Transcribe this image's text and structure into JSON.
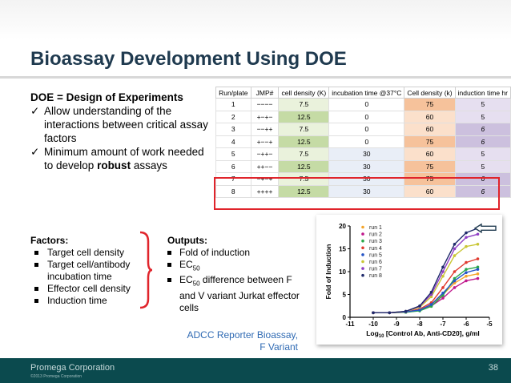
{
  "slide": {
    "title": "Bioassay Development Using DOE",
    "doe_definition": "DOE = Design of Experiments",
    "doe_bullets": {
      "b1": "Allow understanding of the interactions between critical assay factors",
      "b2_pre": "Minimum amount of work needed to develop ",
      "b2_bold": "robust",
      "b2_post": " assays"
    },
    "factors_heading": "Factors:",
    "factors": [
      "Target cell density",
      "Target cell/antibody incubation time",
      "Effector cell density",
      "Induction time"
    ],
    "outputs_heading": "Outputs:",
    "outputs": {
      "o1": "Fold of induction",
      "o2_pre": "EC",
      "o2_sub": "50",
      "o3_pre": "EC",
      "o3_sub": "50",
      "o3_post": " difference between F and V variant Jurkat effector cells"
    },
    "caption": [
      "ADCC Reporter Bioassay,",
      "F Variant"
    ],
    "footer": {
      "company": "Promega Corporation",
      "copyright": "©2013 Promega Corporation",
      "page_number": "38"
    }
  },
  "design_table": {
    "headers": [
      "Run/plate",
      "JMP#",
      "cell density (K)",
      "incubation time @37°C",
      "Cell density (k)",
      "induction time hr"
    ],
    "rows": [
      [
        "1",
        "−−−−",
        "7.5",
        "0",
        "75",
        "5"
      ],
      [
        "2",
        "+−+−",
        "12.5",
        "0",
        "60",
        "5"
      ],
      [
        "3",
        "−−++",
        "7.5",
        "0",
        "60",
        "6"
      ],
      [
        "4",
        "+−−+",
        "12.5",
        "0",
        "75",
        "6"
      ],
      [
        "5",
        "−++−",
        "7.5",
        "30",
        "60",
        "5"
      ],
      [
        "6",
        "++−−",
        "12.5",
        "30",
        "75",
        "5"
      ],
      [
        "7",
        "−+−+",
        "7.5",
        "30",
        "75",
        "6"
      ],
      [
        "8",
        "++++",
        "12.5",
        "30",
        "60",
        "6"
      ]
    ],
    "highlighted_runs": [
      "7",
      "8"
    ]
  },
  "chart_data": {
    "type": "scatter",
    "xlabel_prefix": "Log",
    "xlabel_sub": "10",
    "xlabel_suffix": " [Control Ab, Anti-CD20], g/ml",
    "ylabel": "Fold of Induction",
    "xlim": [
      -11,
      -5
    ],
    "ylim": [
      0,
      20
    ],
    "xticks": [
      "-11",
      "-10",
      "-9",
      "-8",
      "-7",
      "-6",
      "-5"
    ],
    "yticks": [
      "0",
      "5",
      "10",
      "15",
      "20"
    ],
    "x": [
      -10.0,
      -9.3,
      -8.6,
      -8.0,
      -7.5,
      -7.0,
      -6.5,
      -6.0,
      -5.5
    ],
    "series": [
      {
        "name": "run 1",
        "color": "#f4a52b",
        "values": [
          1.0,
          1.0,
          1.1,
          1.5,
          2.8,
          5.0,
          7.5,
          9.0,
          9.5
        ]
      },
      {
        "name": "run 2",
        "color": "#c0188c",
        "values": [
          1.0,
          1.0,
          1.2,
          1.6,
          2.5,
          4.2,
          6.5,
          8.0,
          8.5
        ]
      },
      {
        "name": "run 3",
        "color": "#2aa84a",
        "values": [
          1.0,
          1.0,
          1.1,
          1.4,
          2.4,
          4.8,
          8.5,
          10.5,
          11.0
        ]
      },
      {
        "name": "run 4",
        "color": "#e03a2f",
        "values": [
          1.0,
          1.0,
          1.2,
          1.8,
          3.2,
          6.5,
          10.0,
          12.0,
          12.8
        ]
      },
      {
        "name": "run 5",
        "color": "#2454c6",
        "values": [
          1.0,
          1.0,
          1.2,
          1.6,
          2.8,
          5.3,
          8.0,
          9.8,
          10.5
        ]
      },
      {
        "name": "run 6",
        "color": "#c9c634",
        "values": [
          1.0,
          1.0,
          1.3,
          2.2,
          4.5,
          9.0,
          13.5,
          15.5,
          16.0
        ]
      },
      {
        "name": "run 7",
        "color": "#8e3fc4",
        "values": [
          1.0,
          1.0,
          1.3,
          2.4,
          5.0,
          10.0,
          15.0,
          17.5,
          18.2
        ]
      },
      {
        "name": "run 8",
        "color": "#1f2a6b",
        "values": [
          1.0,
          1.0,
          1.3,
          2.5,
          5.5,
          11.0,
          16.0,
          18.5,
          19.5
        ]
      }
    ],
    "legend_position": "top-left",
    "annotation_arrow": "points to the highest curve (run 8)"
  }
}
